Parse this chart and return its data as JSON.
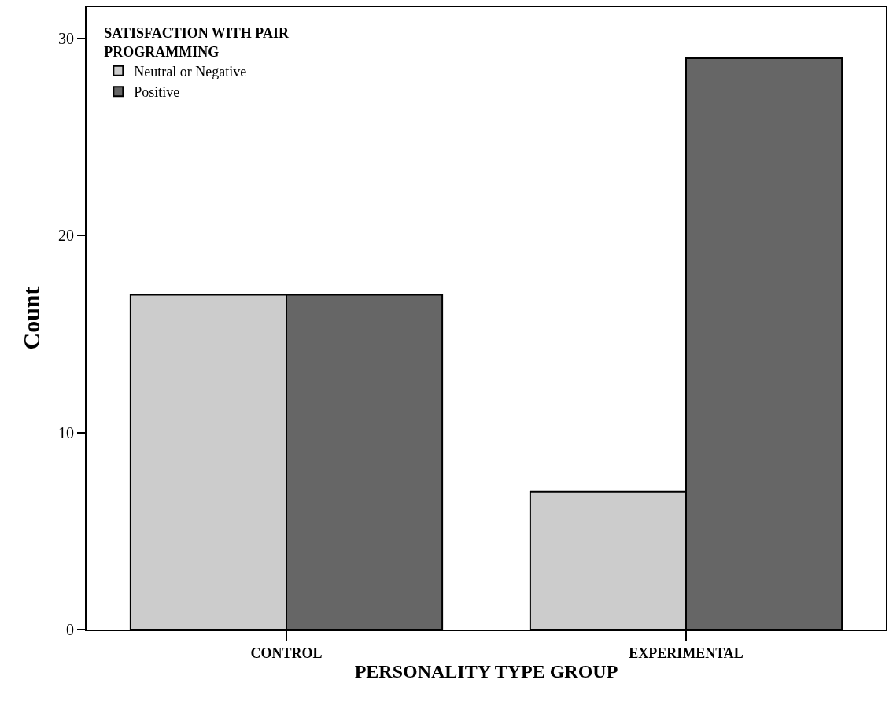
{
  "chart_data": {
    "type": "bar",
    "xlabel": "PERSONALITY TYPE GROUP",
    "ylabel": "Count",
    "legend_title": "SATISFACTION WITH PAIR PROGRAMMING",
    "categories": [
      "CONTROL",
      "EXPERIMENTAL"
    ],
    "series": [
      {
        "name": "Neutral or Negative",
        "color": "#cccccc",
        "values": [
          17,
          7
        ]
      },
      {
        "name": "Positive",
        "color": "#666666",
        "values": [
          17,
          29
        ]
      }
    ],
    "ylim": [
      0,
      31.6
    ],
    "yticks": [
      0,
      10,
      20,
      30
    ],
    "legend": "top left"
  }
}
